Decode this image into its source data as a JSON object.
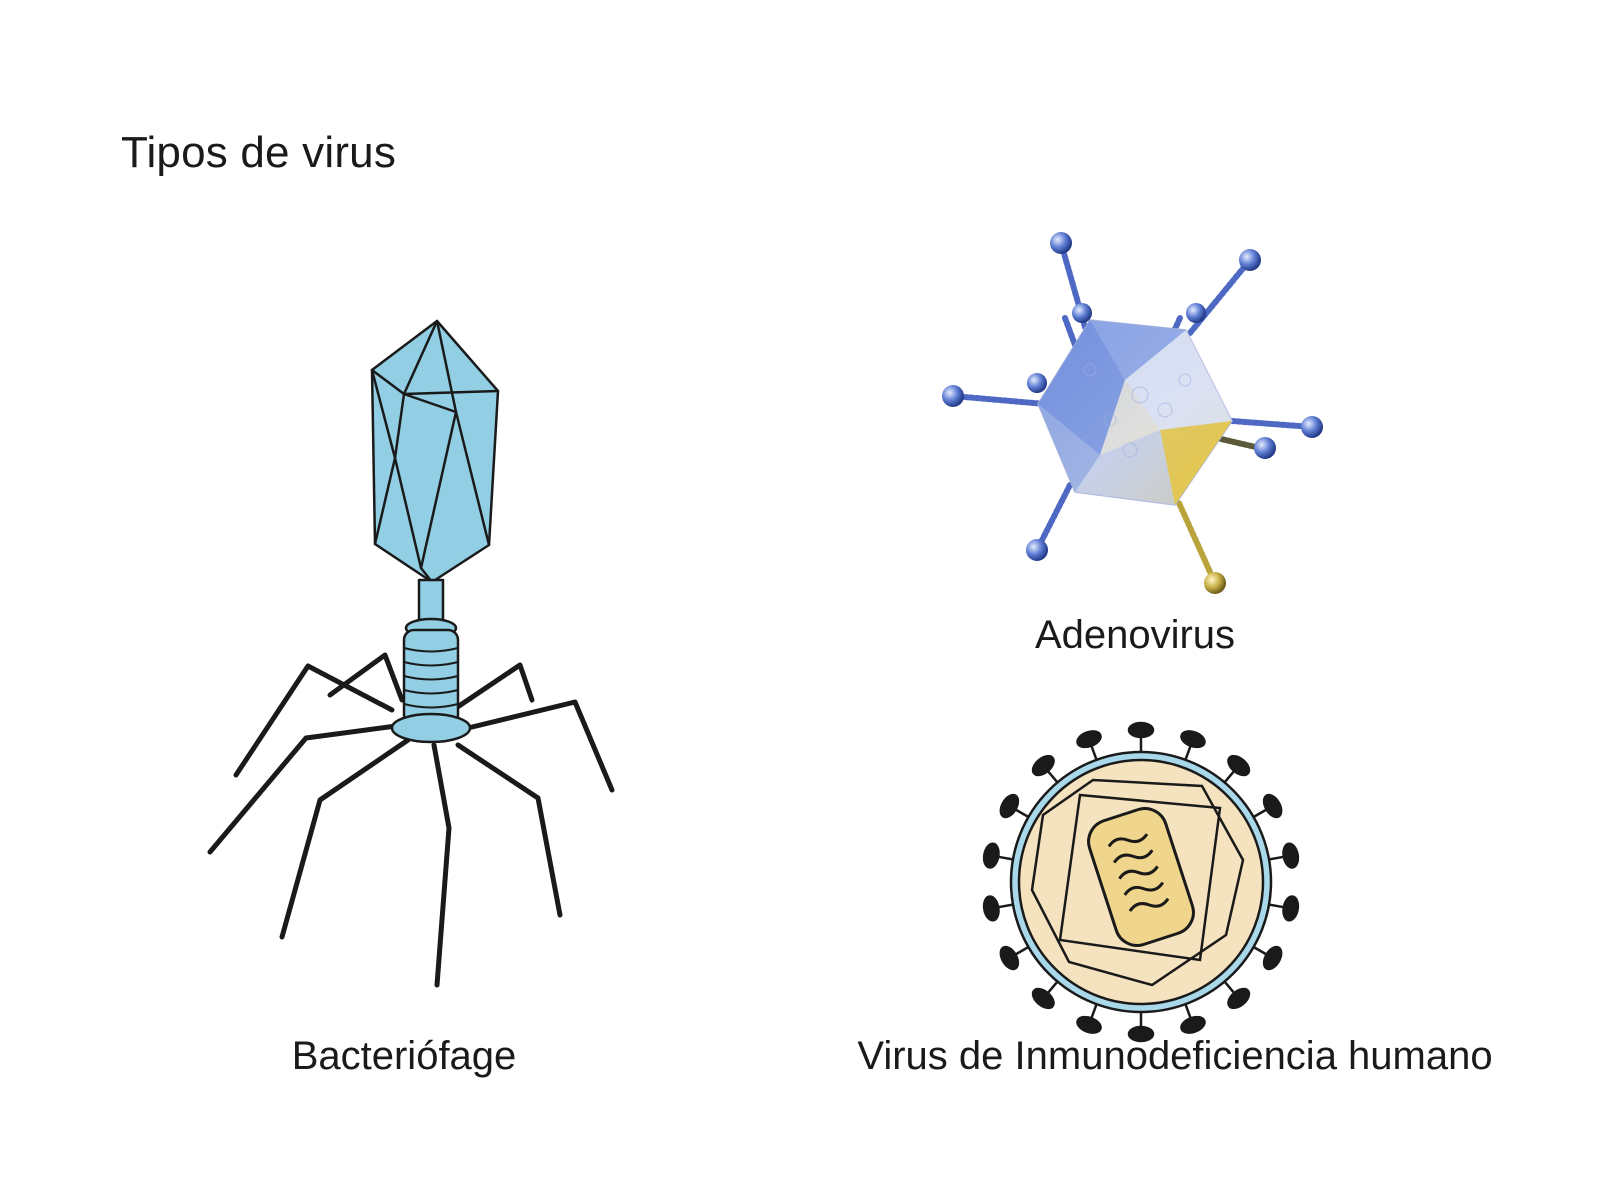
{
  "title": "Tipos de virus",
  "figures": [
    {
      "id": "bacteriophage",
      "label": "Bacteriófage"
    },
    {
      "id": "adenovirus",
      "label": "Adenovirus"
    },
    {
      "id": "hiv",
      "label": "Virus de Inmunodeficiencia humano"
    }
  ],
  "colors": {
    "background": "#ffffff",
    "text": "#1a1a1a",
    "phage_fill": "#92cfe5",
    "outline": "#1a1a1a",
    "adeno_blue": "#7f9fe0",
    "adeno_yellow": "#e0c442",
    "hiv_membrane": "#a9d8ea",
    "hiv_capsid": "#f5e3bf",
    "hiv_core": "#f0d58c"
  }
}
